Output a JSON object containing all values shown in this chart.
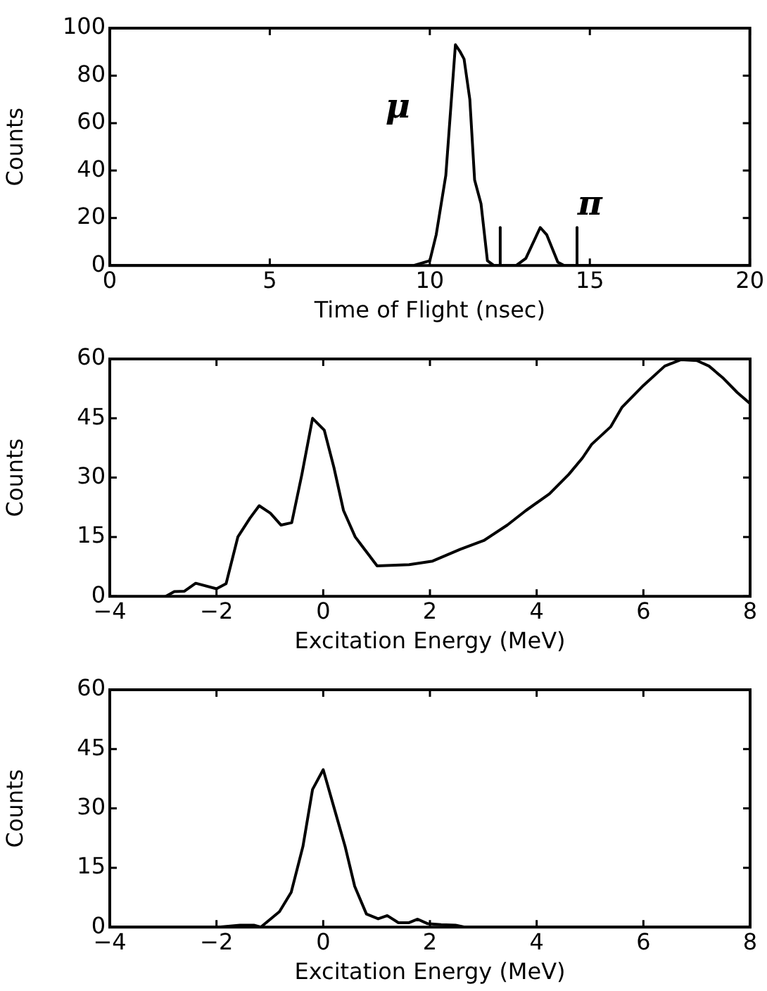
{
  "chart_data": [
    {
      "type": "line",
      "xlabel": "Time of Flight (nsec)",
      "ylabel": "Counts",
      "xlim": [
        0,
        20
      ],
      "xticks": [
        0,
        5,
        10,
        15,
        20
      ],
      "ylim": [
        0,
        100
      ],
      "yticks": [
        0,
        20,
        40,
        60,
        80,
        100
      ],
      "grid": false,
      "legend": false,
      "marker": "none",
      "line_style": "solid",
      "annotations": [
        "μ",
        "π"
      ],
      "series": [
        {
          "color": "#000000",
          "x": [
            0,
            9.5,
            10.0,
            10.2,
            10.5,
            10.8,
            10.95,
            11.07,
            11.25,
            11.4,
            11.6,
            11.8,
            12.0,
            12.7,
            13.0,
            13.45,
            13.65,
            14.0,
            14.2,
            20
          ],
          "values": [
            0,
            0,
            2,
            13,
            38,
            93,
            90,
            87,
            70,
            36,
            26,
            2,
            0,
            0,
            3,
            16,
            13,
            1.4,
            0,
            0
          ]
        },
        {
          "color": "#000000",
          "x": [
            12.2,
            12.2
          ],
          "values": [
            0,
            16
          ]
        },
        {
          "color": "#000000",
          "x": [
            14.6,
            14.6
          ],
          "values": [
            0,
            16
          ]
        }
      ]
    },
    {
      "type": "line",
      "xlabel": "Excitation Energy (MeV)",
      "ylabel": "Counts",
      "xlim": [
        -4,
        8
      ],
      "xticks": [
        -4,
        -2,
        0,
        2,
        4,
        6,
        8
      ],
      "ylim": [
        0,
        60
      ],
      "yticks": [
        0,
        15,
        30,
        45,
        60
      ],
      "grid": false,
      "legend": false,
      "marker": "none",
      "line_style": "solid",
      "series": [
        {
          "color": "#000000",
          "x": [
            -2.95,
            -2.79,
            -2.6,
            -2.39,
            -2.0,
            -1.82,
            -1.6,
            -1.37,
            -1.2,
            -0.99,
            -0.79,
            -0.59,
            -0.4,
            -0.2,
            0.02,
            0.2,
            0.38,
            0.6,
            1.01,
            1.61,
            2.05,
            2.57,
            3.01,
            3.45,
            3.8,
            4.24,
            4.6,
            4.86,
            5.03,
            5.39,
            5.6,
            6.0,
            6.4,
            6.7,
            7.0,
            7.23,
            7.5,
            7.76,
            8.0
          ],
          "values": [
            0,
            1.2,
            1.3,
            3.3,
            1.9,
            3.2,
            15,
            19.8,
            22.9,
            21,
            18,
            18.6,
            30.8,
            45,
            42,
            32.6,
            21.7,
            15,
            7.7,
            8,
            8.9,
            11.9,
            14.1,
            18,
            21.7,
            25.9,
            30.8,
            35,
            38.4,
            42.9,
            47.8,
            53.3,
            58.2,
            59.8,
            59.6,
            58.2,
            55.1,
            51.5,
            48.7
          ]
        }
      ]
    },
    {
      "type": "line",
      "xlabel": "Excitation Energy (MeV)",
      "ylabel": "Counts",
      "xlim": [
        -4,
        8
      ],
      "xticks": [
        -4,
        -2,
        0,
        2,
        4,
        6,
        8
      ],
      "ylim": [
        0,
        60
      ],
      "yticks": [
        0,
        15,
        30,
        45,
        60
      ],
      "grid": false,
      "legend": false,
      "marker": "none",
      "line_style": "solid",
      "series": [
        {
          "color": "#000000",
          "x": [
            -4,
            -1.96,
            -1.56,
            -1.3,
            -1.17,
            -0.82,
            -0.6,
            -0.38,
            -0.2,
            0,
            0.19,
            0.41,
            0.59,
            0.81,
            1.03,
            1.2,
            1.41,
            1.6,
            1.77,
            1.95,
            2.21,
            2.48,
            2.65,
            8
          ],
          "values": [
            0,
            0,
            0.5,
            0.5,
            0,
            3.9,
            8.8,
            20.4,
            34.8,
            39.8,
            30.8,
            20.4,
            10.3,
            3.3,
            2.1,
            2.9,
            1.1,
            1.1,
            2,
            0.9,
            0.6,
            0.5,
            0,
            0
          ]
        }
      ]
    }
  ]
}
